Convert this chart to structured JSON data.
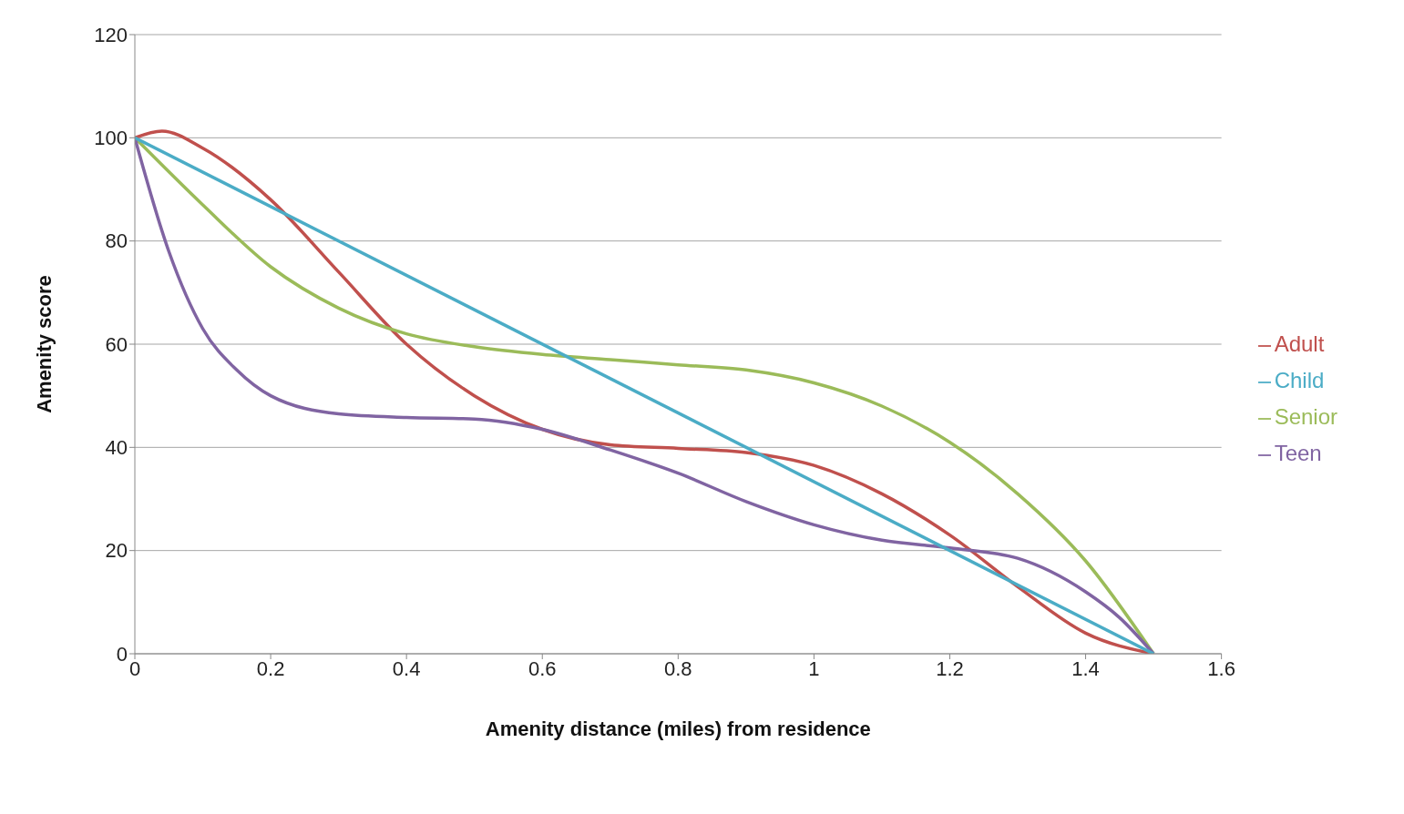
{
  "chart_data": {
    "type": "line",
    "xlabel": "Amenity distance (miles)  from residence",
    "ylabel": "Amenity score",
    "xlim": [
      0,
      1.6
    ],
    "xticks": [
      0,
      0.2,
      0.4,
      0.6,
      0.8,
      1,
      1.2,
      1.4,
      1.6
    ],
    "ylim": [
      0,
      120
    ],
    "yticks": [
      0,
      20,
      40,
      60,
      80,
      100,
      120
    ],
    "grid": "y",
    "legend": "right",
    "marker": "none",
    "line_style": "solid",
    "series": [
      {
        "name": "Adult",
        "color": "#c0504d",
        "x": [
          0,
          0.04,
          0.1,
          0.2,
          0.3,
          0.4,
          0.5,
          0.6,
          0.7,
          0.8,
          0.9,
          1,
          1.1,
          1.2,
          1.3,
          1.4,
          1.5
        ],
        "values": [
          100,
          101.3,
          98,
          88,
          74,
          60,
          50,
          43.5,
          40.5,
          39.8,
          39,
          36.5,
          31,
          23,
          13,
          4,
          0
        ]
      },
      {
        "name": "Senior",
        "color": "#9bbb59",
        "x": [
          0,
          0.1,
          0.2,
          0.3,
          0.4,
          0.5,
          0.6,
          0.7,
          0.8,
          0.9,
          1,
          1.1,
          1.2,
          1.3,
          1.4,
          1.5
        ],
        "values": [
          100,
          87,
          75,
          67,
          62,
          59.5,
          58,
          57,
          56,
          55,
          52.5,
          48,
          41,
          31,
          18,
          0
        ]
      },
      {
        "name": "Teen",
        "color": "#8064a2",
        "x": [
          0,
          0.05,
          0.1,
          0.15,
          0.2,
          0.3,
          0.4,
          0.5,
          0.6,
          0.7,
          0.8,
          0.9,
          1,
          1.1,
          1.2,
          1.3,
          1.4,
          1.45,
          1.5
        ],
        "values": [
          100,
          78,
          63,
          55,
          50,
          46.5,
          45.8,
          45.5,
          43.5,
          39.5,
          35,
          29.5,
          25,
          22,
          20.5,
          18.5,
          12,
          7,
          0
        ]
      },
      {
        "name": "Child",
        "color": "#4bacc6",
        "x": [
          0,
          1.5
        ],
        "values": [
          100,
          0
        ]
      }
    ]
  }
}
